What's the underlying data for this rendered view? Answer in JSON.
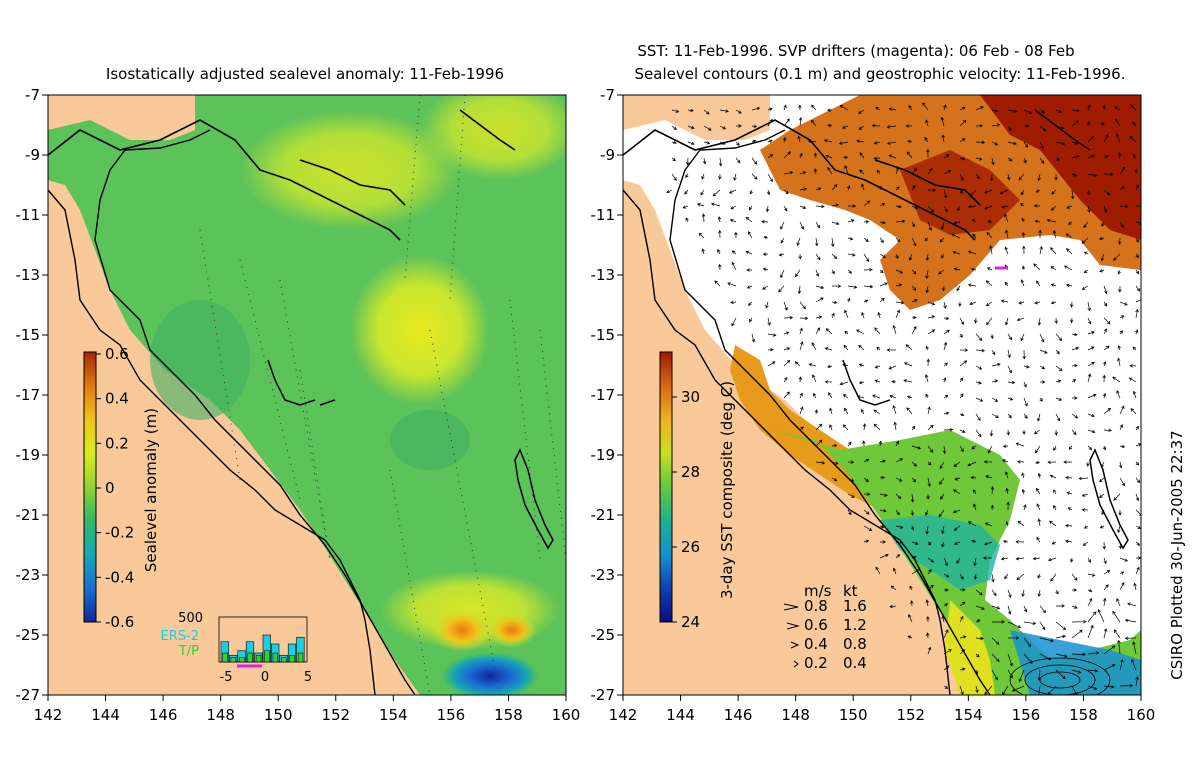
{
  "left_panel": {
    "title": "Isostatically adjusted sealevel anomaly: 11-Feb-1996",
    "colorbar": {
      "label": "Sealevel anomaly (m)",
      "ticks": [
        "0.6",
        "0.4",
        "0.2",
        "0",
        "-0.2",
        "-0.4",
        "-0.6"
      ],
      "colors": [
        "#a52a00",
        "#e07a10",
        "#f2c21a",
        "#d9ee1c",
        "#8fd430",
        "#2fb86a",
        "#18a6b4",
        "#1a6fd0",
        "#14249a"
      ]
    },
    "histogram": {
      "ymax_label": "500",
      "series_labels": [
        "ERS-2",
        "T/P"
      ],
      "series_colors": [
        "#1ad0e0",
        "#2fd030"
      ],
      "x_ticks": [
        "-5",
        "0",
        "5"
      ],
      "ers2_values": [
        0.45,
        0.15,
        0.25,
        0.45,
        0.2,
        0.6,
        0.4,
        0.15,
        0.4,
        0.55
      ],
      "tp_values": [
        0.2,
        0.1,
        0.1,
        0.2,
        0.15,
        0.25,
        0.2,
        0.1,
        0.15,
        0.2
      ]
    }
  },
  "right_panel": {
    "title_line1": "SST: 11-Feb-1996. SVP drifters (magenta): 06 Feb - 08 Feb",
    "title_line2": "Sealevel contours (0.1 m) and geostrophic velocity: 11-Feb-1996.",
    "colorbar": {
      "label": "3-day SST composite (deg C)",
      "ticks": [
        "30",
        "28",
        "26",
        "24"
      ],
      "colors": [
        "#a01800",
        "#d86a10",
        "#f0b020",
        "#c8e020",
        "#60c840",
        "#20b090",
        "#1890d0",
        "#1040b0",
        "#100a80"
      ]
    },
    "velocity_legend": {
      "header_ms": "m/s",
      "header_kt": "kt",
      "rows": [
        {
          "ms": "0.8",
          "kt": "1.6"
        },
        {
          "ms": "0.6",
          "kt": "1.2"
        },
        {
          "ms": "0.4",
          "kt": "0.8"
        },
        {
          "ms": "0.2",
          "kt": "0.4"
        }
      ]
    }
  },
  "axes": {
    "y_ticks": [
      "-7",
      "-9",
      "-11",
      "-13",
      "-15",
      "-17",
      "-19",
      "-21",
      "-23",
      "-25",
      "-27"
    ],
    "x_ticks": [
      "142",
      "144",
      "146",
      "148",
      "150",
      "152",
      "154",
      "156",
      "158",
      "160"
    ]
  },
  "credit": "CSIRO Plotted 30-Jun-2005 22:37",
  "colors": {
    "land": "#f9c99a",
    "ocean_green": "#5cc25a",
    "sst_white": "#ffffff"
  }
}
